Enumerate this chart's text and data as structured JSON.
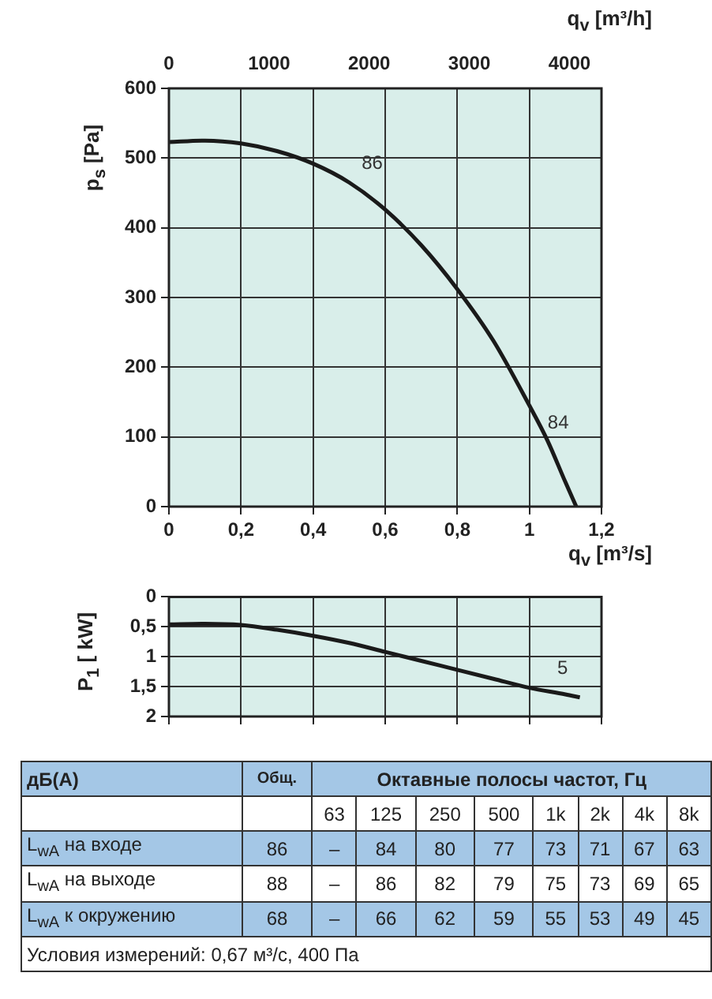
{
  "chart_data": [
    {
      "type": "line",
      "xlabel": "q$_{v}$ [m³/s]",
      "x2label": "q$_{v}$ [m³/h]",
      "ylabel": "p$_{s}$ [Pa]",
      "x": [
        0,
        0.1,
        0.2,
        0.3,
        0.4,
        0.5,
        0.6,
        0.7,
        0.8,
        0.9,
        1.0,
        1.05,
        1.1,
        1.13
      ],
      "values": [
        523,
        525,
        521,
        510,
        492,
        465,
        426,
        375,
        312,
        238,
        145,
        95,
        35,
        0
      ],
      "color": "#1a1a1a",
      "xlim": [
        0,
        1.2
      ],
      "xticks": [
        0,
        {
          "value": 0.2,
          "label": "0,2"
        },
        {
          "value": 0.4,
          "label": "0,4"
        },
        {
          "value": 0.6,
          "label": "0,6"
        },
        {
          "value": 0.8,
          "label": "0,8"
        },
        1,
        {
          "value": 1.2,
          "label": "1,2"
        }
      ],
      "x2lim": [
        0,
        4320
      ],
      "x2ticks": [
        0,
        1000,
        2000,
        3000,
        4000
      ],
      "ylim": [
        0,
        600
      ],
      "yticks": [
        0,
        100,
        200,
        300,
        400,
        500,
        600
      ],
      "grid": true,
      "annotations": [
        "86",
        "84"
      ]
    },
    {
      "type": "line",
      "ylabel": "P$_{1}$ [ kW]",
      "x": [
        0,
        0.1,
        0.2,
        0.3,
        0.4,
        0.5,
        0.6,
        0.7,
        0.8,
        0.9,
        1.0,
        1.1,
        1.14
      ],
      "values": [
        0.46,
        0.45,
        0.47,
        0.55,
        0.65,
        0.77,
        0.92,
        1.07,
        1.22,
        1.37,
        1.52,
        1.63,
        1.68
      ],
      "color": "#1a1a1a",
      "xlim": [
        0,
        1.2
      ],
      "xticks": [
        0,
        0.2,
        0.4,
        0.6,
        0.8,
        1,
        1.2
      ],
      "ylim": [
        2,
        0
      ],
      "yticks": [
        0,
        {
          "value": 0.5,
          "label": "0,5"
        },
        1,
        {
          "value": 1.5,
          "label": "1,5"
        },
        2
      ],
      "tick_labels": "y",
      "grid": true,
      "annotations": [
        "5"
      ]
    },
    {
      "type": "other",
      "title": "дБ(А)",
      "subtitle": "Октавные полосы частот, Гц",
      "categories": [
        "Общ.",
        "63",
        "125",
        "250",
        "500",
        "1k",
        "2k",
        "4k",
        "8k"
      ],
      "y_categories": [
        "L$_{wA}$ на входе",
        "L$_{wA}$ на выходе",
        "L$_{wA}$ к окружению"
      ],
      "cell_labels": [
        [
          "86",
          "–",
          "84",
          "80",
          "77",
          "73",
          "71",
          "67",
          "63"
        ],
        [
          "88",
          "–",
          "86",
          "82",
          "79",
          "75",
          "73",
          "69",
          "65"
        ],
        [
          "68",
          "–",
          "66",
          "62",
          "59",
          "55",
          "53",
          "49",
          "45"
        ]
      ],
      "annotations": [
        "Условия измерений: 0,67 м³/с, 400 Па"
      ]
    }
  ]
}
